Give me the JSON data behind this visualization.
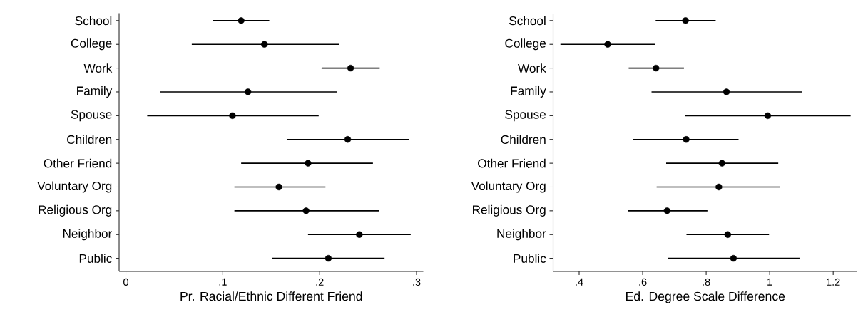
{
  "chart_data": [
    {
      "type": "scatter",
      "orientation": "horizontal",
      "color": "#000000",
      "marker": "circle",
      "categories": [
        "School",
        "College",
        "Work",
        "Family",
        "Spouse",
        "Children",
        "Other Friend",
        "Voluntary Org",
        "Religious Org",
        "Neighbor",
        "Public"
      ],
      "values": [
        0.119,
        0.143,
        0.232,
        0.126,
        0.11,
        0.229,
        0.188,
        0.158,
        0.186,
        0.241,
        0.209
      ],
      "errors": [
        [
          0.09,
          0.148
        ],
        [
          0.068,
          0.22
        ],
        [
          0.202,
          0.262
        ],
        [
          0.035,
          0.218
        ],
        [
          0.022,
          0.199
        ],
        [
          0.166,
          0.292
        ],
        [
          0.119,
          0.255
        ],
        [
          0.112,
          0.206
        ],
        [
          0.112,
          0.261
        ],
        [
          0.188,
          0.294
        ],
        [
          0.151,
          0.267
        ]
      ],
      "xlabel": "Pr. Racial/Ethnic Different Friend",
      "xlim": [
        -0.007,
        0.307
      ],
      "xticks": [
        0,
        {
          "value": 0.1,
          "label": ".1"
        },
        {
          "value": 0.2,
          "label": ".2"
        },
        {
          "value": 0.3,
          "label": ".3"
        }
      ]
    },
    {
      "type": "scatter",
      "orientation": "horizontal",
      "color": "#000000",
      "marker": "circle",
      "categories": [
        "School",
        "College",
        "Work",
        "Family",
        "Spouse",
        "Children",
        "Other Friend",
        "Voluntary Org",
        "Religious Org",
        "Neighbor",
        "Public"
      ],
      "values": [
        0.735,
        0.49,
        0.642,
        0.864,
        0.994,
        0.737,
        0.85,
        0.84,
        0.677,
        0.868,
        0.886
      ],
      "errors": [
        [
          0.641,
          0.83
        ],
        [
          0.341,
          0.64
        ],
        [
          0.556,
          0.73
        ],
        [
          0.628,
          1.101
        ],
        [
          0.733,
          1.255
        ],
        [
          0.57,
          0.902
        ],
        [
          0.674,
          1.027
        ],
        [
          0.644,
          1.033
        ],
        [
          0.553,
          0.804
        ],
        [
          0.738,
          0.998
        ],
        [
          0.68,
          1.094
        ]
      ],
      "xlabel": "Ed. Degree Scale Difference",
      "xlim": [
        0.318,
        1.276
      ],
      "xticks": [
        {
          "value": 0.4,
          "label": ".4"
        },
        {
          "value": 0.6,
          "label": ".6"
        },
        {
          "value": 0.8,
          "label": ".8"
        },
        1,
        1.2
      ]
    }
  ]
}
